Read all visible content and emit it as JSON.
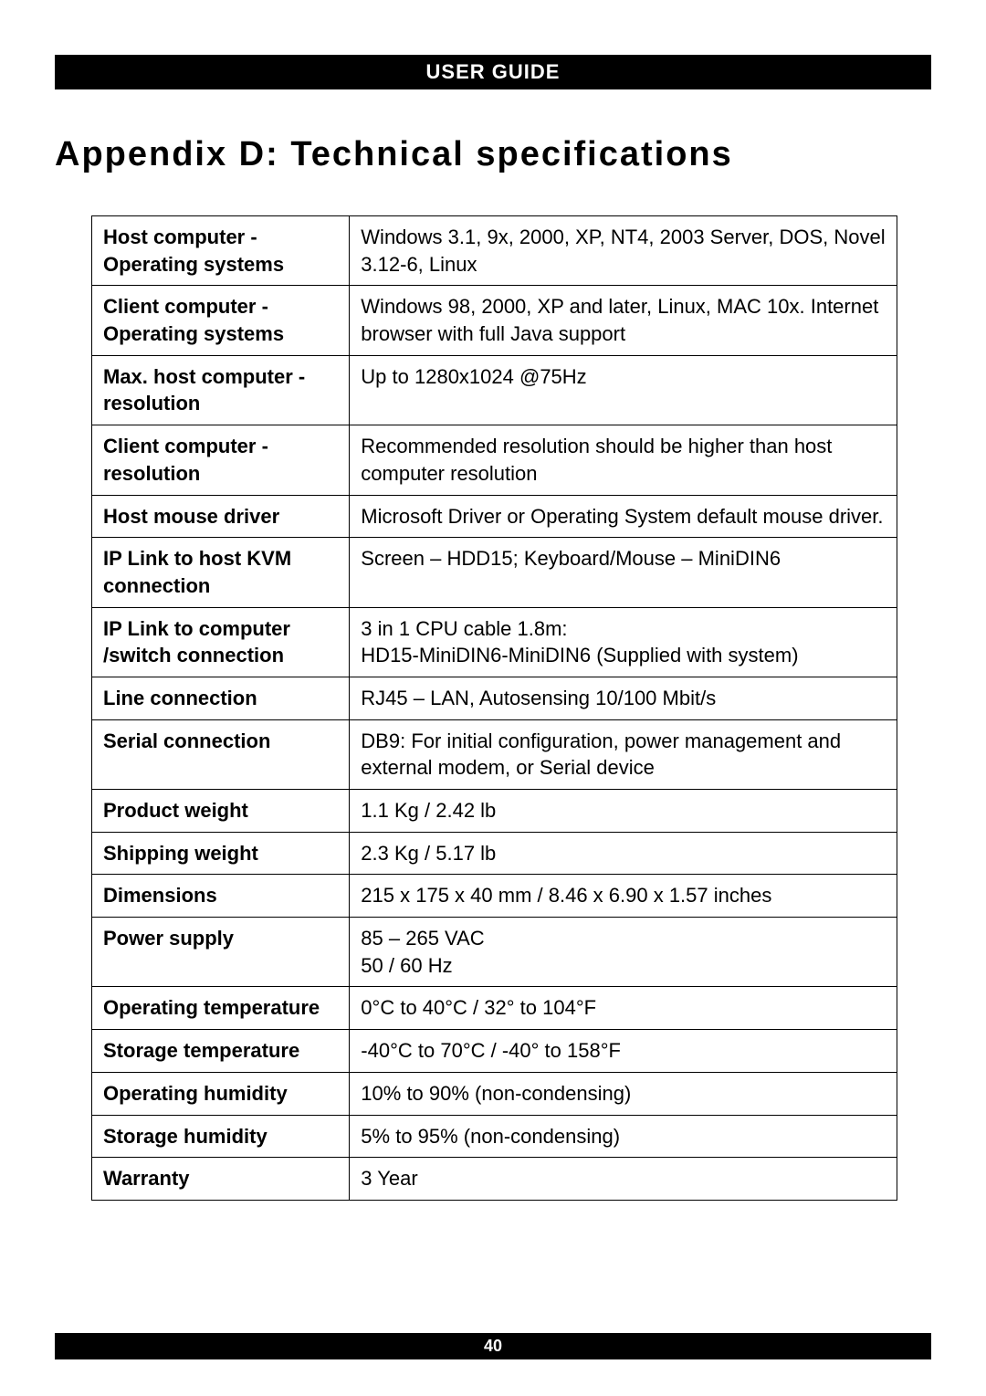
{
  "header": "USER GUIDE",
  "title": "Appendix D: Technical specifications",
  "footer": "40",
  "table": {
    "columns": [
      "label",
      "value"
    ],
    "col_widths_pct": [
      32,
      68
    ],
    "border_color": "#000000",
    "font_size_pt": 16,
    "rows": [
      {
        "label": "Host computer - Operating systems",
        "value": "Windows 3.1, 9x, 2000, XP, NT4, 2003 Server, DOS, Novel 3.12-6, Linux"
      },
      {
        "label": "Client computer - Operating systems",
        "value": "Windows 98, 2000, XP and later, Linux, MAC 10x. Internet browser with full Java support"
      },
      {
        "label": "Max. host computer - resolution",
        "value": "Up to 1280x1024 @75Hz"
      },
      {
        "label": "Client computer - resolution",
        "value": "Recommended resolution should be higher than host computer resolution"
      },
      {
        "label": "Host mouse driver",
        "value": "Microsoft Driver or Operating System default mouse driver."
      },
      {
        "label": "IP Link to host KVM connection",
        "value": "Screen – HDD15; Keyboard/Mouse – MiniDIN6"
      },
      {
        "label": "IP Link to computer /switch connection",
        "value": "3 in 1 CPU cable 1.8m:\nHD15-MiniDIN6-MiniDIN6 (Supplied with system)"
      },
      {
        "label": "Line connection",
        "value": "RJ45 – LAN, Autosensing 10/100 Mbit/s"
      },
      {
        "label": "Serial connection",
        "value": "DB9:  For initial configuration, power management and external modem, or Serial device"
      },
      {
        "label": "Product weight",
        "value": "1.1 Kg / 2.42 lb"
      },
      {
        "label": "Shipping weight",
        "value": "2.3 Kg / 5.17 lb"
      },
      {
        "label": "Dimensions",
        "value": "215 x 175 x 40 mm / 8.46 x 6.90 x 1.57 inches"
      },
      {
        "label": "Power supply",
        "value": "85 – 265 VAC\n50 / 60 Hz"
      },
      {
        "label": "Operating temperature",
        "value": " 0°C to 40°C / 32° to 104°F"
      },
      {
        "label": "Storage temperature",
        "value": "-40°C to 70°C / -40° to 158°F"
      },
      {
        "label": "Operating humidity",
        "value": "10% to 90% (non-condensing)"
      },
      {
        "label": "Storage humidity",
        "value": "5% to 95% (non-condensing)"
      },
      {
        "label": "Warranty",
        "value": "3 Year"
      }
    ]
  },
  "colors": {
    "bar_bg": "#000000",
    "bar_text": "#ffffff",
    "page_bg": "#ffffff",
    "text": "#000000"
  }
}
